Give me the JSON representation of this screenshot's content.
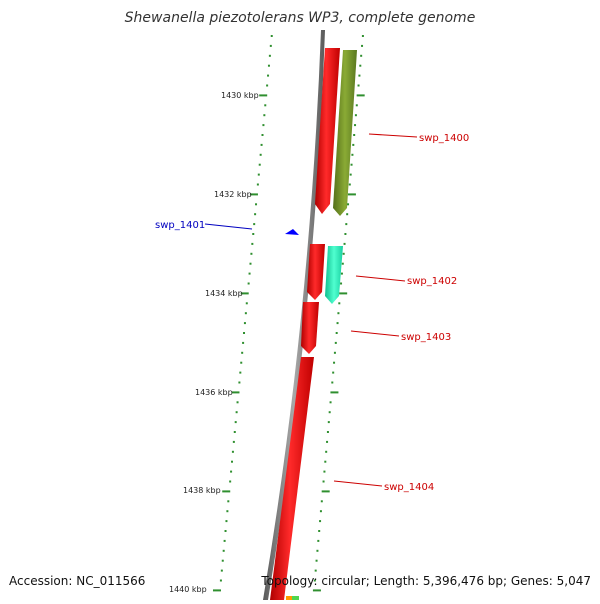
{
  "title": "Shewanella piezotolerans WP3, complete genome",
  "footer": {
    "accession": "Accession: NC_011566",
    "summary": "Topology: circular; Length: 5,396,476 bp; Genes: 5,047"
  },
  "scale_labels": [
    "1430 kbp",
    "1432 kbp",
    "1434 kbp",
    "1436 kbp",
    "1438 kbp",
    "1440 kbp"
  ],
  "genes": [
    {
      "name": "swp_1400",
      "strand": "reverse",
      "color": "#ff0000"
    },
    {
      "name": "swp_1401",
      "strand": "forward",
      "color": "#0000ff"
    },
    {
      "name": "swp_1402",
      "strand": "reverse",
      "color": "#ff0000"
    },
    {
      "name": "swp_1403",
      "strand": "reverse",
      "color": "#ff0000"
    },
    {
      "name": "swp_1404",
      "strand": "reverse",
      "color": "#ff0000"
    }
  ],
  "colors": {
    "backbone": "#808080",
    "ticks": "#2f8f2f",
    "gene_red": "#ff0000",
    "gene_olive": "#7a9a2a",
    "gene_cyan": "#22e6b0",
    "label_blue": "#0000c0",
    "label_red": "#cc0000"
  }
}
